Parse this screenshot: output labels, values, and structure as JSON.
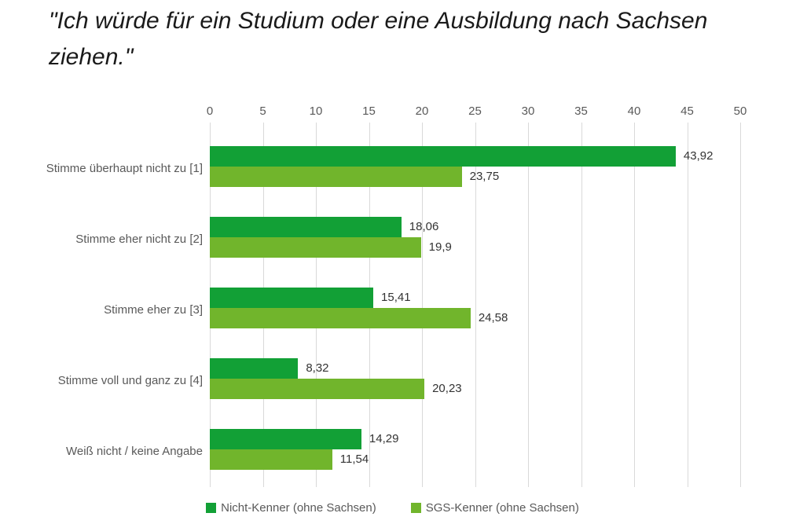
{
  "title": "\"Ich würde für ein Studium oder eine Ausbildung nach Sachsen ziehen.\"",
  "colors": {
    "series1": "#12a036",
    "series2": "#71b52c",
    "gridline": "#d9d9d9",
    "axis_text": "#595959",
    "value_text": "#333333",
    "title_text": "#1a1a1a",
    "background": "#ffffff"
  },
  "chart_data": {
    "type": "bar",
    "orientation": "horizontal",
    "title": "\"Ich würde für ein Studium oder eine Ausbildung nach Sachsen ziehen.\"",
    "categories": [
      "Stimme überhaupt nicht zu [1]",
      "Stimme eher nicht zu [2]",
      "Stimme eher zu [3]",
      "Stimme voll und ganz zu [4]",
      "Weiß nicht / keine Angabe"
    ],
    "series": [
      {
        "name": "Nicht-Kenner (ohne Sachsen)",
        "values": [
          43.92,
          18.06,
          15.41,
          8.32,
          14.29
        ],
        "value_labels": [
          "43,92",
          "18,06",
          "15,41",
          "8,32",
          "14,29"
        ],
        "color": "#12a036"
      },
      {
        "name": "SGS-Kenner (ohne Sachsen)",
        "values": [
          23.75,
          19.9,
          24.58,
          20.23,
          11.54
        ],
        "value_labels": [
          "23,75",
          "19,9",
          "24,58",
          "20,23",
          "11,54"
        ],
        "color": "#71b52c"
      }
    ],
    "x_axis": {
      "position": "top",
      "min": 0,
      "max": 50,
      "ticks": [
        0,
        5,
        10,
        15,
        20,
        25,
        30,
        35,
        40,
        45,
        50
      ]
    },
    "grid": true,
    "legend_position": "bottom",
    "xlabel": "",
    "ylabel": ""
  }
}
